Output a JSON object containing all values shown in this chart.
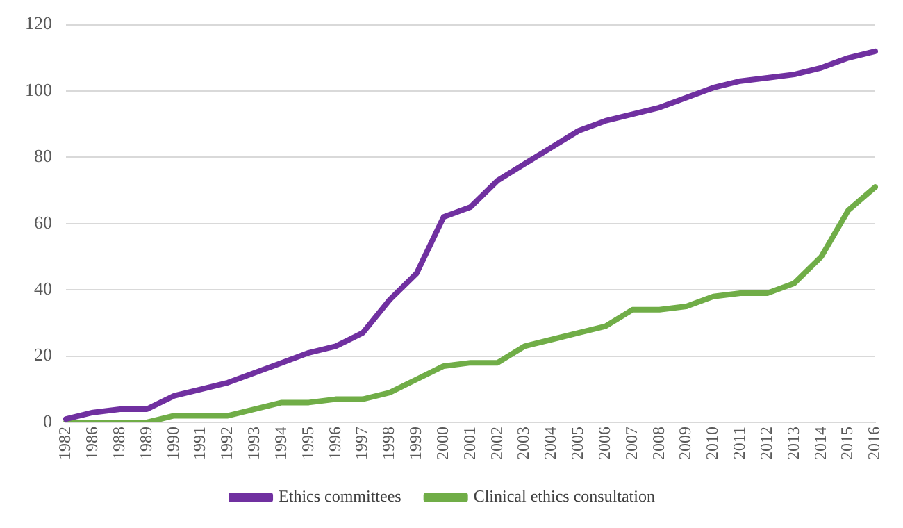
{
  "chart_data": {
    "type": "line",
    "categories": [
      "1982",
      "1986",
      "1988",
      "1989",
      "1990",
      "1991",
      "1992",
      "1993",
      "1994",
      "1995",
      "1996",
      "1997",
      "1998",
      "1999",
      "2000",
      "2001",
      "2002",
      "2003",
      "2004",
      "2005",
      "2006",
      "2007",
      "2008",
      "2009",
      "2010",
      "2011",
      "2012",
      "2013",
      "2014",
      "2015",
      "2016"
    ],
    "series": [
      {
        "name": "Ethics committees",
        "color": "#7030a0",
        "values": [
          1,
          3,
          4,
          4,
          8,
          10,
          12,
          15,
          18,
          21,
          23,
          27,
          37,
          45,
          62,
          65,
          73,
          78,
          83,
          88,
          91,
          93,
          95,
          98,
          101,
          103,
          104,
          105,
          107,
          110,
          112
        ]
      },
      {
        "name": "Clinical ethics consultation",
        "color": "#70ad47",
        "values": [
          0,
          0,
          0,
          0,
          2,
          2,
          2,
          4,
          6,
          6,
          7,
          7,
          9,
          13,
          17,
          18,
          18,
          23,
          25,
          27,
          29,
          34,
          34,
          35,
          38,
          39,
          39,
          42,
          50,
          64,
          71
        ]
      }
    ],
    "ylim": [
      0,
      120
    ],
    "yticks": [
      0,
      20,
      40,
      60,
      80,
      100,
      120
    ],
    "grid": "y",
    "legend": "bottom",
    "marker": "none",
    "line_style": "solid"
  }
}
